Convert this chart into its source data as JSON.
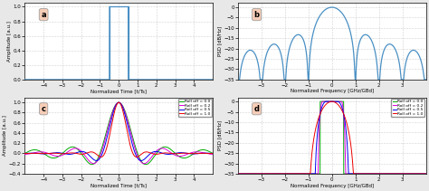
{
  "fig_width": 4.74,
  "fig_height": 2.11,
  "dpi": 100,
  "bg_color": "#e8e8e8",
  "panel_bg": "#ffffff",
  "grid_color": "#aaaaaa",
  "grid_linestyle": ":",
  "line_color_main": "#4a90c4",
  "roll_off_values": [
    0.0,
    0.2,
    0.5,
    1.0
  ],
  "roll_off_colors": [
    "#00aa00",
    "#dd00dd",
    "#0000ee",
    "#ee0000"
  ],
  "roll_off_labels": [
    "Roll off = 0.0",
    "Roll off = 0.2",
    "Roll off = 0.5",
    "Roll off = 1.0"
  ],
  "panel_a": {
    "xlabel": "Normalized Time [t/Ts]",
    "ylabel": "Amplitude [a.u.]",
    "xlim": [
      -5,
      5
    ],
    "ylim": [
      0,
      1.05
    ],
    "yticks": [
      0,
      0.2,
      0.4,
      0.6,
      0.8,
      1.0
    ],
    "xticks": [
      -4,
      -3,
      -2,
      -1,
      0,
      1,
      2,
      3,
      4
    ],
    "label": "a"
  },
  "panel_b": {
    "xlabel": "Normalized Frequency [GHz/GBd]",
    "ylabel": "PSD [dB/Hz]",
    "xlim": [
      -4,
      4
    ],
    "ylim": [
      -35,
      2
    ],
    "yticks": [
      0,
      -5,
      -10,
      -15,
      -20,
      -25,
      -30,
      -35
    ],
    "xticks": [
      -3,
      -2,
      -1,
      0,
      1,
      2,
      3
    ],
    "label": "b"
  },
  "panel_c": {
    "xlabel": "Normalized Time [t/Ts]",
    "ylabel": "Amplitude [a.u.]",
    "xlim": [
      -5,
      5
    ],
    "ylim": [
      -0.4,
      1.1
    ],
    "yticks": [
      -0.4,
      -0.2,
      0,
      0.2,
      0.4,
      0.6,
      0.8,
      1.0
    ],
    "xticks": [
      -4,
      -3,
      -2,
      -1,
      0,
      1,
      2,
      3,
      4
    ],
    "label": "c"
  },
  "panel_d": {
    "xlabel": "Normalized Frequency [GHz/GBd]",
    "ylabel": "PSD [dB/Hz]",
    "xlim": [
      -4,
      4
    ],
    "ylim": [
      -35,
      2
    ],
    "yticks": [
      0,
      -5,
      -10,
      -15,
      -20,
      -25,
      -30,
      -35
    ],
    "xticks": [
      -3,
      -2,
      -1,
      0,
      1,
      2,
      3
    ],
    "label": "d"
  }
}
